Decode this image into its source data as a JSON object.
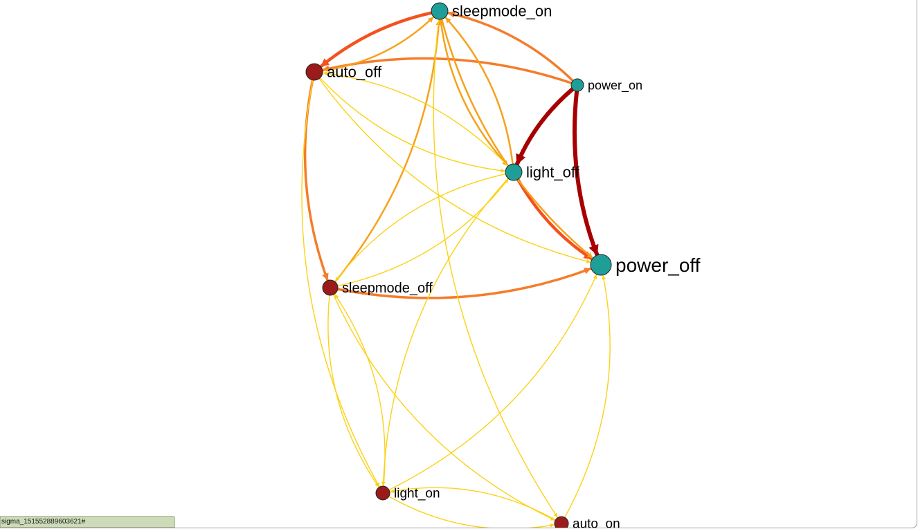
{
  "graph": {
    "nodes": [
      {
        "id": "sleepmode_on",
        "label": "sleepmode_on",
        "color": "#1f9e97"
      },
      {
        "id": "auto_off",
        "label": "auto_off",
        "color": "#9b1b1b"
      },
      {
        "id": "power_on",
        "label": "power_on",
        "color": "#1f9e97"
      },
      {
        "id": "light_off",
        "label": "light_off",
        "color": "#1f9e97"
      },
      {
        "id": "power_off",
        "label": "power_off",
        "color": "#1f9e97"
      },
      {
        "id": "sleepmode_off",
        "label": "sleepmode_off",
        "color": "#9b1b1b"
      },
      {
        "id": "light_on",
        "label": "light_on",
        "color": "#9b1b1b"
      },
      {
        "id": "auto_on",
        "label": "auto_on",
        "color": "#9b1b1b"
      }
    ],
    "edges": [
      {
        "from": "power_on",
        "to": "power_off",
        "color": "#a80000"
      },
      {
        "from": "power_on",
        "to": "light_off",
        "color": "#a80000"
      },
      {
        "from": "light_off",
        "to": "power_off",
        "color": "#f4511e"
      },
      {
        "from": "sleepmode_on",
        "to": "auto_off",
        "color": "#f4511e"
      },
      {
        "from": "power_on",
        "to": "sleepmode_on",
        "color": "#f57c2a"
      },
      {
        "from": "power_on",
        "to": "auto_off",
        "color": "#f57c2a"
      },
      {
        "from": "auto_off",
        "to": "sleepmode_off",
        "color": "#f57c2a"
      },
      {
        "from": "sleepmode_off",
        "to": "power_off",
        "color": "#f57c2a"
      },
      {
        "from": "auto_off",
        "to": "sleepmode_on",
        "color": "#f7a11a"
      },
      {
        "from": "light_off",
        "to": "sleepmode_on",
        "color": "#f7a11a"
      },
      {
        "from": "sleepmode_on",
        "to": "power_off",
        "color": "#f7a11a"
      },
      {
        "from": "sleepmode_off",
        "to": "sleepmode_on",
        "color": "#f7a11a"
      },
      {
        "from": "sleepmode_on",
        "to": "light_off",
        "color": "#f7a11a"
      },
      {
        "from": "auto_off",
        "to": "light_off",
        "color": "#fbd214"
      },
      {
        "from": "light_off",
        "to": "auto_off",
        "color": "#fbd214"
      },
      {
        "from": "auto_off",
        "to": "light_on",
        "color": "#fbd214"
      },
      {
        "from": "auto_off",
        "to": "power_off",
        "color": "#fbd214"
      },
      {
        "from": "light_off",
        "to": "sleepmode_off",
        "color": "#fbd214"
      },
      {
        "from": "sleepmode_off",
        "to": "light_off",
        "color": "#fbd214"
      },
      {
        "from": "light_off",
        "to": "light_on",
        "color": "#fbd214"
      },
      {
        "from": "sleepmode_off",
        "to": "light_on",
        "color": "#fbd214"
      },
      {
        "from": "light_on",
        "to": "sleepmode_off",
        "color": "#fbd214"
      },
      {
        "from": "sleepmode_off",
        "to": "auto_on",
        "color": "#fbd214"
      },
      {
        "from": "auto_on",
        "to": "power_off",
        "color": "#fbd214"
      },
      {
        "from": "light_on",
        "to": "power_off",
        "color": "#fbd214"
      },
      {
        "from": "light_on",
        "to": "auto_on",
        "color": "#fbd214"
      },
      {
        "from": "auto_on",
        "to": "light_on",
        "color": "#fbd214"
      },
      {
        "from": "sleepmode_on",
        "to": "auto_on",
        "color": "#fbd214"
      }
    ]
  },
  "status_bar": {
    "text": "sigma_1515528896036​21#"
  }
}
